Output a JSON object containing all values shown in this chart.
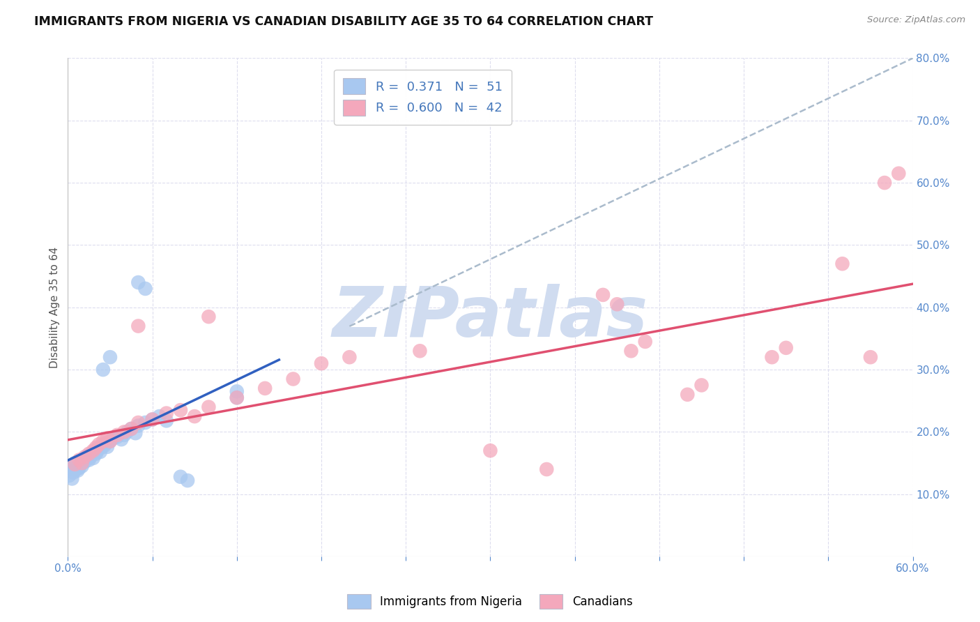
{
  "title": "IMMIGRANTS FROM NIGERIA VS CANADIAN DISABILITY AGE 35 TO 64 CORRELATION CHART",
  "source": "Source: ZipAtlas.com",
  "ylabel": "Disability Age 35 to 64",
  "xlim": [
    0.0,
    0.6
  ],
  "ylim": [
    0.0,
    0.8
  ],
  "xticks": [
    0.0,
    0.06,
    0.12,
    0.18,
    0.24,
    0.3,
    0.36,
    0.42,
    0.48,
    0.54,
    0.6
  ],
  "yticks": [
    0.0,
    0.1,
    0.2,
    0.3,
    0.4,
    0.5,
    0.6,
    0.7,
    0.8
  ],
  "nigeria_color": "#A8C8F0",
  "canada_color": "#F4A8BC",
  "nigeria_line_color": "#3060C0",
  "canada_line_color": "#E05070",
  "dashed_line_color": "#AABBCC",
  "R_nigeria": 0.371,
  "N_nigeria": 51,
  "R_canada": 0.6,
  "N_canada": 42,
  "nigeria_scatter": [
    [
      0.001,
      0.13
    ],
    [
      0.002,
      0.14
    ],
    [
      0.003,
      0.125
    ],
    [
      0.004,
      0.135
    ],
    [
      0.005,
      0.145
    ],
    [
      0.005,
      0.15
    ],
    [
      0.006,
      0.14
    ],
    [
      0.007,
      0.138
    ],
    [
      0.008,
      0.142
    ],
    [
      0.009,
      0.148
    ],
    [
      0.01,
      0.15
    ],
    [
      0.01,
      0.145
    ],
    [
      0.011,
      0.155
    ],
    [
      0.012,
      0.152
    ],
    [
      0.013,
      0.158
    ],
    [
      0.014,
      0.162
    ],
    [
      0.015,
      0.155
    ],
    [
      0.016,
      0.16
    ],
    [
      0.017,
      0.165
    ],
    [
      0.018,
      0.158
    ],
    [
      0.019,
      0.17
    ],
    [
      0.02,
      0.165
    ],
    [
      0.021,
      0.17
    ],
    [
      0.022,
      0.175
    ],
    [
      0.023,
      0.168
    ],
    [
      0.024,
      0.175
    ],
    [
      0.025,
      0.18
    ],
    [
      0.026,
      0.178
    ],
    [
      0.027,
      0.182
    ],
    [
      0.028,
      0.176
    ],
    [
      0.03,
      0.185
    ],
    [
      0.032,
      0.19
    ],
    [
      0.035,
      0.192
    ],
    [
      0.038,
      0.188
    ],
    [
      0.04,
      0.195
    ],
    [
      0.042,
      0.2
    ],
    [
      0.045,
      0.205
    ],
    [
      0.048,
      0.198
    ],
    [
      0.05,
      0.21
    ],
    [
      0.055,
      0.215
    ],
    [
      0.06,
      0.22
    ],
    [
      0.065,
      0.225
    ],
    [
      0.07,
      0.218
    ],
    [
      0.03,
      0.32
    ],
    [
      0.025,
      0.3
    ],
    [
      0.05,
      0.44
    ],
    [
      0.055,
      0.43
    ],
    [
      0.08,
      0.128
    ],
    [
      0.085,
      0.122
    ],
    [
      0.12,
      0.265
    ],
    [
      0.12,
      0.255
    ]
  ],
  "canada_scatter": [
    [
      0.005,
      0.148
    ],
    [
      0.008,
      0.155
    ],
    [
      0.01,
      0.15
    ],
    [
      0.012,
      0.16
    ],
    [
      0.015,
      0.165
    ],
    [
      0.018,
      0.17
    ],
    [
      0.02,
      0.175
    ],
    [
      0.022,
      0.18
    ],
    [
      0.025,
      0.185
    ],
    [
      0.028,
      0.19
    ],
    [
      0.03,
      0.185
    ],
    [
      0.035,
      0.195
    ],
    [
      0.04,
      0.2
    ],
    [
      0.045,
      0.205
    ],
    [
      0.05,
      0.215
    ],
    [
      0.06,
      0.22
    ],
    [
      0.07,
      0.23
    ],
    [
      0.08,
      0.235
    ],
    [
      0.09,
      0.225
    ],
    [
      0.1,
      0.24
    ],
    [
      0.12,
      0.255
    ],
    [
      0.14,
      0.27
    ],
    [
      0.16,
      0.285
    ],
    [
      0.18,
      0.31
    ],
    [
      0.05,
      0.37
    ],
    [
      0.1,
      0.385
    ],
    [
      0.2,
      0.32
    ],
    [
      0.25,
      0.33
    ],
    [
      0.3,
      0.17
    ],
    [
      0.34,
      0.14
    ],
    [
      0.38,
      0.42
    ],
    [
      0.39,
      0.405
    ],
    [
      0.4,
      0.33
    ],
    [
      0.41,
      0.345
    ],
    [
      0.44,
      0.26
    ],
    [
      0.45,
      0.275
    ],
    [
      0.5,
      0.32
    ],
    [
      0.51,
      0.335
    ],
    [
      0.55,
      0.47
    ],
    [
      0.57,
      0.32
    ],
    [
      0.59,
      0.615
    ],
    [
      0.58,
      0.6
    ]
  ],
  "nigeria_trend": [
    0.0,
    0.115,
    0.6,
    0.26
  ],
  "canada_trend": [
    0.0,
    0.095,
    0.6,
    0.49
  ],
  "watermark": "ZIPatlas",
  "watermark_color": "#D0DCF0",
  "background_color": "#FFFFFF",
  "grid_color": "#DDDDEE",
  "title_color": "#111111",
  "tick_label_color": "#5588CC",
  "legend_label_color": "#4477BB"
}
